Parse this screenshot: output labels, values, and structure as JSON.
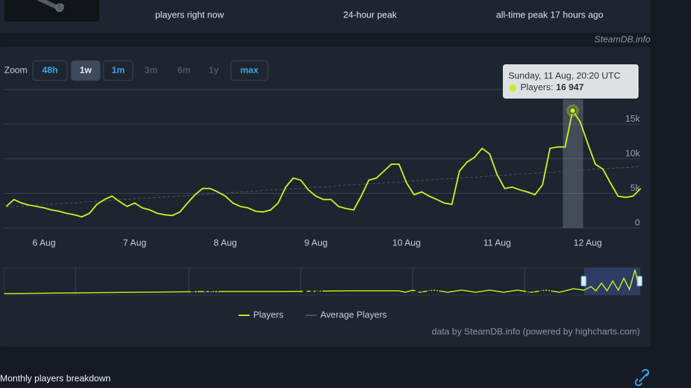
{
  "stats": [
    "players right now",
    "24-hour peak",
    "all-time peak 17 hours ago"
  ],
  "watermark": "SteamDB.info",
  "zoom": {
    "label": "Zoom",
    "buttons": [
      "48h",
      "1w",
      "1m",
      "3m",
      "6m",
      "1y",
      "max"
    ]
  },
  "chart_data": {
    "type": "line",
    "categories": [
      null,
      null,
      null,
      null,
      null,
      "6 Aug",
      null,
      null,
      null,
      null,
      null,
      null,
      null,
      null,
      null,
      null,
      null,
      "7 Aug",
      null,
      null,
      null,
      null,
      null,
      null,
      null,
      null,
      null,
      null,
      null,
      "8 Aug",
      null,
      null,
      null,
      null,
      null,
      null,
      null,
      null,
      null,
      null,
      null,
      "9 Aug",
      null,
      null,
      null,
      null,
      null,
      null,
      null,
      null,
      null,
      null,
      null,
      "10 Aug",
      null,
      null,
      null,
      null,
      null,
      null,
      null,
      null,
      null,
      null,
      null,
      "11 Aug",
      null,
      null,
      null,
      null,
      null,
      null,
      null,
      null,
      null,
      null,
      null,
      "12 Aug",
      null,
      null,
      null,
      null,
      null,
      null,
      null
    ],
    "series": [
      {
        "name": "Players",
        "color": "#c5f01e",
        "values": [
          3100,
          4100,
          3600,
          3300,
          3100,
          2900,
          2600,
          2400,
          2100,
          1900,
          1600,
          2100,
          3400,
          4100,
          4600,
          3800,
          3100,
          3600,
          2900,
          2600,
          2100,
          1900,
          1800,
          2300,
          3600,
          4800,
          5700,
          5700,
          5200,
          4600,
          3600,
          3100,
          2900,
          2400,
          2300,
          2600,
          3600,
          5900,
          7200,
          6900,
          5500,
          4600,
          4100,
          4100,
          3100,
          2800,
          2600,
          4600,
          6900,
          7200,
          8200,
          9200,
          9200,
          6500,
          4800,
          5200,
          4600,
          4100,
          3600,
          3400,
          8200,
          9500,
          10200,
          11500,
          10700,
          7700,
          5700,
          5900,
          5500,
          5200,
          4800,
          6200,
          11500,
          11700,
          11700,
          16947,
          15300,
          12200,
          9200,
          8500,
          6500,
          4600,
          4400,
          4600,
          5700
        ]
      },
      {
        "name": "Average Players",
        "color": "#4b5361",
        "values": [
          3000,
          3100,
          3100,
          3200,
          3300,
          3400,
          3400,
          3500,
          3600,
          3600,
          3700,
          3800,
          3800,
          3900,
          4000,
          4100,
          4100,
          4200,
          4300,
          4300,
          4400,
          4500,
          4500,
          4600,
          4700,
          4800,
          4800,
          4900,
          5000,
          5000,
          5100,
          5200,
          5200,
          5300,
          5400,
          5500,
          5500,
          5600,
          5700,
          5700,
          5800,
          5900,
          5900,
          6000,
          6100,
          6200,
          6200,
          6300,
          6400,
          6400,
          6500,
          6600,
          6600,
          6700,
          6800,
          6900,
          6900,
          7000,
          7100,
          7100,
          7200,
          7300,
          7300,
          7400,
          7500,
          7600,
          7600,
          7700,
          7800,
          7800,
          7900,
          8000,
          8000,
          8100,
          8200,
          8300,
          8300,
          8400,
          8500,
          8500,
          8600,
          8700,
          8700,
          8800,
          8900
        ]
      }
    ],
    "ylim": [
      0,
      20000
    ],
    "yticks": [
      0,
      {
        "value": 5000,
        "label": "5k"
      },
      {
        "value": 10000,
        "label": "10k"
      },
      {
        "value": 15000,
        "label": "15k"
      }
    ],
    "grid": true,
    "legend": "bottom",
    "tooltip": {
      "title": "Sunday, 11 Aug, 20:20 UTC",
      "label": "Players:",
      "value": 16947,
      "value_label": "16 947"
    }
  },
  "navigator_labels": [
    "3 Jun",
    "17 Jun",
    "1 Jul",
    "15 Jul",
    "29 Jul"
  ],
  "credit": "data by SteamDB.info (powered by highcharts.com)",
  "section_title": "Monthly players breakdown"
}
